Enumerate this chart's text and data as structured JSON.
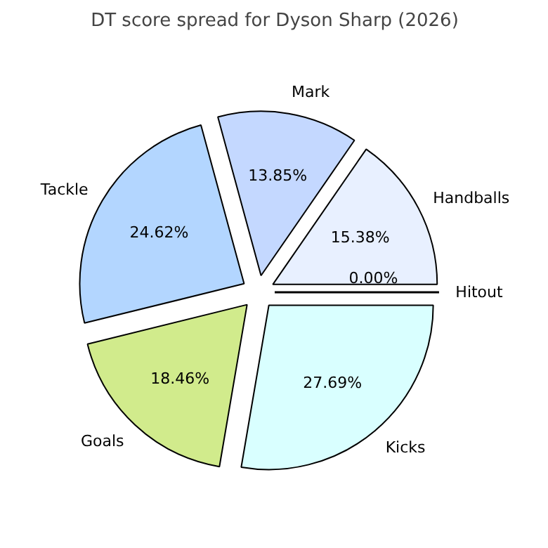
{
  "chart_data": {
    "type": "pie",
    "title": "DT score spread for Dyson Sharp (2026)",
    "categories": [
      "Hitout",
      "Handballs",
      "Mark",
      "Tackle",
      "Goals",
      "Kicks"
    ],
    "values": [
      0,
      15.38,
      13.85,
      24.62,
      18.46,
      27.69
    ],
    "value_labels": [
      "0.00%",
      "15.38%",
      "13.85%",
      "24.62%",
      "18.46%",
      "27.69%"
    ],
    "colors": [
      "#d0e0ff",
      "#e8f0ff",
      "#c4d8ff",
      "#b3d6ff",
      "#d1eb8c",
      "#d9ffff"
    ]
  }
}
